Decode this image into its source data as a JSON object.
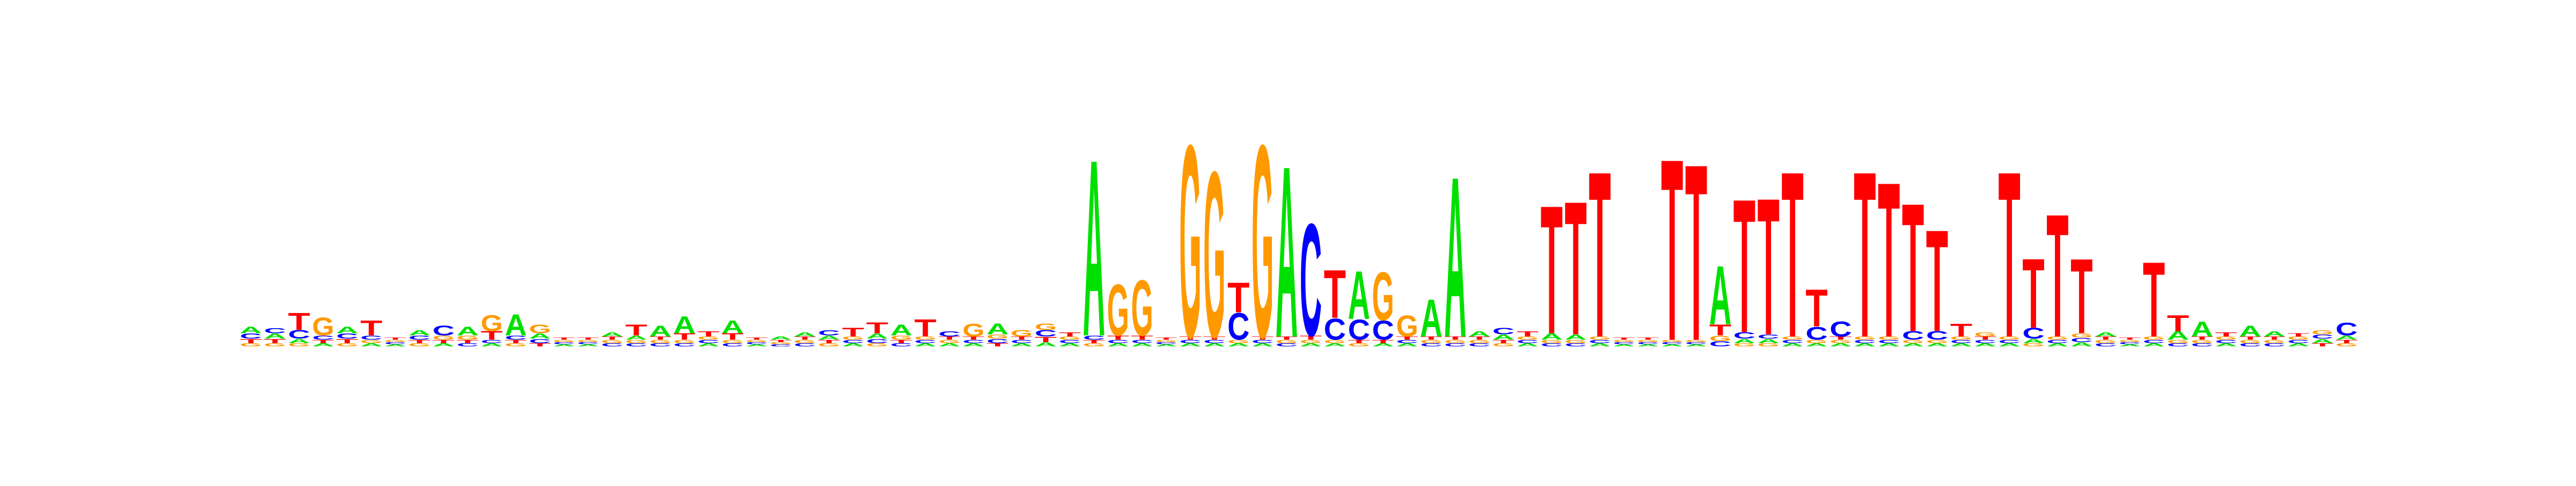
{
  "chart_data": {
    "type": "sequence-logo",
    "title": "",
    "xlabel": "",
    "ylabel": "",
    "alphabet": [
      "A",
      "C",
      "G",
      "T"
    ],
    "colors": {
      "A": "#00e000",
      "C": "#0000ff",
      "G": "#ff9900",
      "T": "#ff0000"
    },
    "positions": [
      {
        "A": 0.06,
        "C": 0.05,
        "G": 0.03,
        "T": 0.04
      },
      {
        "A": 0.05,
        "C": 0.05,
        "G": 0.03,
        "T": 0.04
      },
      {
        "A": 0.04,
        "C": 0.08,
        "G": 0.03,
        "T": 0.16
      },
      {
        "A": 0.03,
        "C": 0.04,
        "G": 0.17,
        "T": 0.03
      },
      {
        "A": 0.06,
        "C": 0.05,
        "G": 0.03,
        "T": 0.04
      },
      {
        "A": 0.03,
        "C": 0.04,
        "G": 0.03,
        "T": 0.14
      },
      {
        "A": 0.02,
        "C": 0.02,
        "G": 0.02,
        "T": 0.02
      },
      {
        "A": 0.05,
        "C": 0.04,
        "G": 0.03,
        "T": 0.03
      },
      {
        "A": 0.03,
        "C": 0.09,
        "G": 0.04,
        "T": 0.03
      },
      {
        "A": 0.08,
        "C": 0.03,
        "G": 0.04,
        "T": 0.03
      },
      {
        "A": 0.03,
        "C": 0.03,
        "G": 0.15,
        "T": 0.08
      },
      {
        "A": 0.2,
        "C": 0.04,
        "G": 0.03,
        "T": 0.03
      },
      {
        "A": 0.05,
        "C": 0.04,
        "G": 0.08,
        "T": 0.03
      },
      {
        "A": 0.02,
        "C": 0.02,
        "G": 0.02,
        "T": 0.02
      },
      {
        "A": 0.02,
        "C": 0.02,
        "G": 0.02,
        "T": 0.02
      },
      {
        "A": 0.04,
        "C": 0.03,
        "G": 0.03,
        "T": 0.03
      },
      {
        "A": 0.04,
        "C": 0.03,
        "G": 0.03,
        "T": 0.1
      },
      {
        "A": 0.1,
        "C": 0.03,
        "G": 0.03,
        "T": 0.03
      },
      {
        "A": 0.16,
        "C": 0.03,
        "G": 0.03,
        "T": 0.06
      },
      {
        "A": 0.03,
        "C": 0.03,
        "G": 0.03,
        "T": 0.05
      },
      {
        "A": 0.12,
        "C": 0.03,
        "G": 0.03,
        "T": 0.06
      },
      {
        "A": 0.02,
        "C": 0.02,
        "G": 0.02,
        "T": 0.02
      },
      {
        "A": 0.03,
        "C": 0.02,
        "G": 0.02,
        "T": 0.02
      },
      {
        "A": 0.04,
        "C": 0.03,
        "G": 0.03,
        "T": 0.03
      },
      {
        "A": 0.04,
        "C": 0.05,
        "G": 0.03,
        "T": 0.03
      },
      {
        "A": 0.03,
        "C": 0.03,
        "G": 0.03,
        "T": 0.08
      },
      {
        "A": 0.05,
        "C": 0.04,
        "G": 0.03,
        "T": 0.1
      },
      {
        "A": 0.1,
        "C": 0.03,
        "G": 0.04,
        "T": 0.03
      },
      {
        "A": 0.03,
        "C": 0.03,
        "G": 0.03,
        "T": 0.16
      },
      {
        "A": 0.03,
        "C": 0.05,
        "G": 0.03,
        "T": 0.03
      },
      {
        "A": 0.03,
        "C": 0.03,
        "G": 0.12,
        "T": 0.03
      },
      {
        "A": 0.1,
        "C": 0.04,
        "G": 0.04,
        "T": 0.03
      },
      {
        "A": 0.03,
        "C": 0.03,
        "G": 0.06,
        "T": 0.03
      },
      {
        "A": 0.04,
        "C": 0.06,
        "G": 0.06,
        "T": 0.05
      },
      {
        "A": 0.03,
        "C": 0.03,
        "G": 0.03,
        "T": 0.04
      },
      {
        "A": 1.65,
        "C": 0.04,
        "G": 0.03,
        "T": 0.03
      },
      {
        "A": 0.03,
        "C": 0.03,
        "G": 0.48,
        "T": 0.04
      },
      {
        "A": 0.03,
        "C": 0.03,
        "G": 0.52,
        "T": 0.04
      },
      {
        "A": 0.02,
        "C": 0.02,
        "G": 0.02,
        "T": 0.02
      },
      {
        "A": 0.03,
        "C": 0.03,
        "G": 1.8,
        "T": 0.03
      },
      {
        "A": 0.03,
        "C": 0.03,
        "G": 1.55,
        "T": 0.03
      },
      {
        "A": 0.03,
        "C": 0.25,
        "G": 0.03,
        "T": 0.28
      },
      {
        "A": 0.03,
        "C": 0.03,
        "G": 1.8,
        "T": 0.03
      },
      {
        "A": 1.6,
        "C": 0.03,
        "G": 0.03,
        "T": 0.03
      },
      {
        "A": 0.03,
        "C": 1.05,
        "G": 0.03,
        "T": 0.04
      },
      {
        "A": 0.03,
        "C": 0.2,
        "G": 0.03,
        "T": 0.45
      },
      {
        "A": 0.45,
        "C": 0.19,
        "G": 0.03,
        "T": 0.03
      },
      {
        "A": 0.03,
        "C": 0.18,
        "G": 0.45,
        "T": 0.03
      },
      {
        "A": 0.03,
        "C": 0.03,
        "G": 0.2,
        "T": 0.03
      },
      {
        "A": 0.35,
        "C": 0.03,
        "G": 0.03,
        "T": 0.03
      },
      {
        "A": 1.5,
        "C": 0.03,
        "G": 0.03,
        "T": 0.03
      },
      {
        "A": 0.05,
        "C": 0.03,
        "G": 0.03,
        "T": 0.03
      },
      {
        "A": 0.05,
        "C": 0.06,
        "G": 0.03,
        "T": 0.03
      },
      {
        "A": 0.03,
        "C": 0.03,
        "G": 0.03,
        "T": 0.05
      },
      {
        "A": 0.06,
        "C": 0.03,
        "G": 0.03,
        "T": 1.2
      },
      {
        "A": 0.05,
        "C": 0.03,
        "G": 0.03,
        "T": 1.25
      },
      {
        "A": 0.03,
        "C": 0.03,
        "G": 0.03,
        "T": 1.55
      },
      {
        "A": 0.02,
        "C": 0.02,
        "G": 0.02,
        "T": 0.02
      },
      {
        "A": 0.02,
        "C": 0.02,
        "G": 0.02,
        "T": 0.02
      },
      {
        "A": 0.02,
        "C": 0.02,
        "G": 0.02,
        "T": 1.7
      },
      {
        "A": 0.02,
        "C": 0.02,
        "G": 0.02,
        "T": 1.65
      },
      {
        "A": 0.55,
        "C": 0.05,
        "G": 0.05,
        "T": 0.1
      },
      {
        "A": 0.04,
        "C": 0.06,
        "G": 0.03,
        "T": 1.25
      },
      {
        "A": 0.04,
        "C": 0.04,
        "G": 0.03,
        "T": 1.28
      },
      {
        "A": 0.03,
        "C": 0.03,
        "G": 0.03,
        "T": 1.55
      },
      {
        "A": 0.03,
        "C": 0.12,
        "G": 0.03,
        "T": 0.35
      },
      {
        "A": 0.03,
        "C": 0.14,
        "G": 0.03,
        "T": 0.03
      },
      {
        "A": 0.03,
        "C": 0.03,
        "G": 0.03,
        "T": 1.55
      },
      {
        "A": 0.03,
        "C": 0.03,
        "G": 0.03,
        "T": 1.45
      },
      {
        "A": 0.03,
        "C": 0.08,
        "G": 0.03,
        "T": 1.2
      },
      {
        "A": 0.03,
        "C": 0.08,
        "G": 0.03,
        "T": 0.95
      },
      {
        "A": 0.03,
        "C": 0.03,
        "G": 0.03,
        "T": 0.12
      },
      {
        "A": 0.03,
        "C": 0.03,
        "G": 0.04,
        "T": 0.03
      },
      {
        "A": 0.03,
        "C": 0.03,
        "G": 0.03,
        "T": 1.55
      },
      {
        "A": 0.04,
        "C": 0.1,
        "G": 0.03,
        "T": 0.65
      },
      {
        "A": 0.03,
        "C": 0.03,
        "G": 0.03,
        "T": 1.15
      },
      {
        "A": 0.04,
        "C": 0.04,
        "G": 0.04,
        "T": 0.7
      },
      {
        "A": 0.04,
        "C": 0.03,
        "G": 0.03,
        "T": 0.03
      },
      {
        "A": 0.02,
        "C": 0.02,
        "G": 0.02,
        "T": 0.02
      },
      {
        "A": 0.03,
        "C": 0.03,
        "G": 0.03,
        "T": 0.7
      },
      {
        "A": 0.08,
        "C": 0.03,
        "G": 0.03,
        "T": 0.15
      },
      {
        "A": 0.14,
        "C": 0.03,
        "G": 0.03,
        "T": 0.03
      },
      {
        "A": 0.03,
        "C": 0.03,
        "G": 0.03,
        "T": 0.04
      },
      {
        "A": 0.1,
        "C": 0.03,
        "G": 0.03,
        "T": 0.03
      },
      {
        "A": 0.05,
        "C": 0.03,
        "G": 0.03,
        "T": 0.03
      },
      {
        "A": 0.03,
        "C": 0.03,
        "G": 0.03,
        "T": 0.03
      },
      {
        "A": 0.04,
        "C": 0.04,
        "G": 0.04,
        "T": 0.03
      },
      {
        "A": 0.04,
        "C": 0.12,
        "G": 0.03,
        "T": 0.03
      }
    ]
  }
}
